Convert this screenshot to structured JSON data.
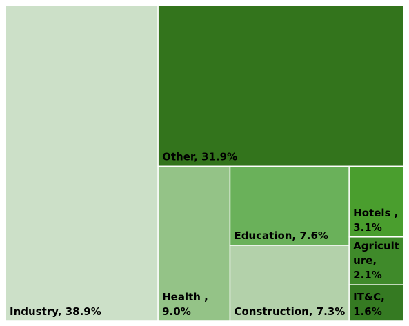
{
  "chart_data": {
    "type": "treemap",
    "values": [
      38.9,
      31.9,
      9.0,
      7.6,
      7.3,
      3.1,
      2.1,
      1.6
    ],
    "value_labels": [
      [
        "Industry, 38.9%"
      ],
      [
        "Other, 31.9%"
      ],
      [
        "Health ,",
        "9.0%"
      ],
      [
        "Education, 7.6%"
      ],
      [
        "Construction, 7.3%"
      ],
      [
        "Hotels ,",
        "3.1%"
      ],
      [
        "Agricult",
        "ure,",
        "2.1%"
      ],
      [
        "IT&C,",
        "1.6%"
      ]
    ],
    "colors": [
      "#cce0c8",
      "#33741c",
      "#94c387",
      "#6ab15a",
      "#b3d1aa",
      "#4a9e2e",
      "#3f8a2a",
      "#357a22"
    ]
  }
}
